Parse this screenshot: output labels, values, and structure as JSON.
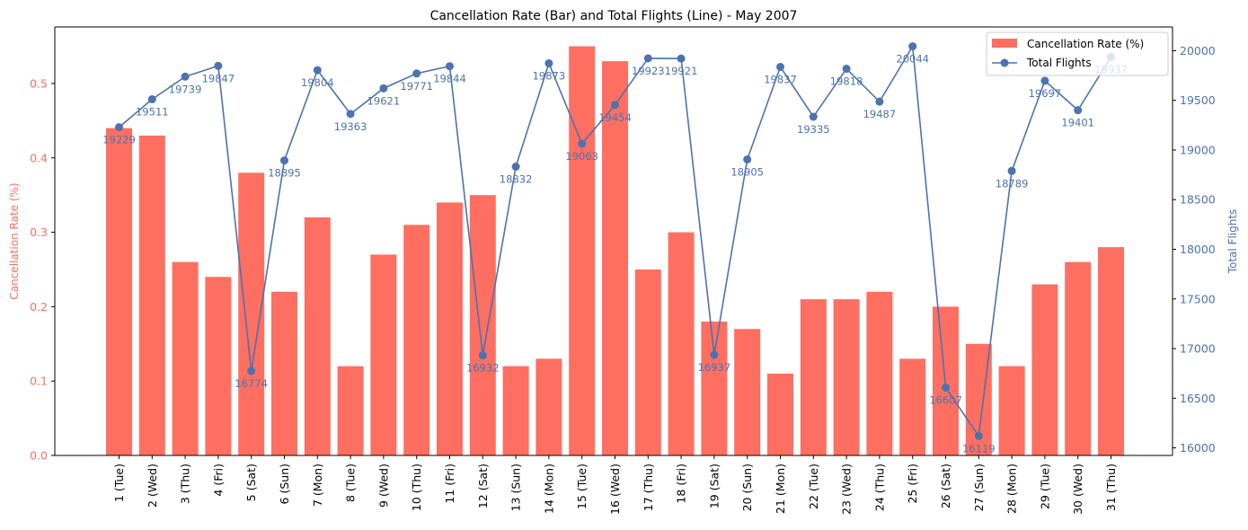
{
  "chart_data": {
    "type": "bar+line",
    "title": "Cancellation Rate (Bar) and Total Flights (Line) - May 2007",
    "categories": [
      "1 (Tue)",
      "2 (Wed)",
      "3 (Thu)",
      "4 (Fri)",
      "5 (Sat)",
      "6 (Sun)",
      "7 (Mon)",
      "8 (Tue)",
      "9 (Wed)",
      "10 (Thu)",
      "11 (Fri)",
      "12 (Sat)",
      "13 (Sun)",
      "14 (Mon)",
      "15 (Tue)",
      "16 (Wed)",
      "17 (Thu)",
      "18 (Fri)",
      "19 (Sat)",
      "20 (Sun)",
      "21 (Mon)",
      "22 (Tue)",
      "23 (Wed)",
      "24 (Thu)",
      "25 (Fri)",
      "26 (Sat)",
      "27 (Sun)",
      "28 (Mon)",
      "29 (Tue)",
      "30 (Wed)",
      "31 (Thu)"
    ],
    "bar_series": {
      "name": "Cancellation Rate (%)",
      "color": "#ff6f61",
      "values": [
        0.44,
        0.43,
        0.26,
        0.24,
        0.38,
        0.22,
        0.32,
        0.12,
        0.27,
        0.31,
        0.34,
        0.35,
        0.12,
        0.13,
        0.55,
        0.53,
        0.25,
        0.3,
        0.18,
        0.17,
        0.11,
        0.21,
        0.21,
        0.22,
        0.13,
        0.2,
        0.15,
        0.12,
        0.23,
        0.26,
        0.28
      ]
    },
    "line_series": {
      "name": "Total Flights",
      "color": "#4c72b0",
      "values": [
        19229,
        19511,
        19739,
        19847,
        16774,
        18895,
        19804,
        19363,
        19621,
        19771,
        19844,
        16932,
        18832,
        19873,
        19063,
        19454,
        19923,
        19921,
        16937,
        18905,
        19837,
        19335,
        19818,
        19487,
        20044,
        16607,
        16119,
        18789,
        19697,
        19401,
        19937
      ],
      "labels": [
        "19229",
        "19511",
        "19739",
        "19847",
        "16774",
        "18895",
        "19804",
        "19363",
        "19621",
        "19771",
        "19844",
        "16932",
        "18832",
        "19873",
        "19063",
        "19454",
        "19923",
        "19921",
        "16937",
        "18905",
        "19837",
        "19335",
        "19818",
        "19487",
        "20044",
        "16607",
        "16119",
        "18789",
        "19697",
        "19401",
        "19937"
      ]
    },
    "y_left": {
      "label": "Cancellation Rate (%)",
      "color": "#ff6f61",
      "range": [
        0,
        0.576
      ],
      "ticks": [
        0.0,
        0.1,
        0.2,
        0.3,
        0.4,
        0.5
      ],
      "tick_labels": [
        "0.0",
        "0.1",
        "0.2",
        "0.3",
        "0.4",
        "0.5"
      ]
    },
    "y_right": {
      "label": "Total Flights",
      "color": "#4c72b0",
      "range": [
        15923.75,
        20239.25
      ],
      "ticks": [
        16000,
        16500,
        17000,
        17500,
        18000,
        18500,
        19000,
        19500,
        20000
      ],
      "tick_labels": [
        "16000",
        "16500",
        "17000",
        "17500",
        "18000",
        "18500",
        "19000",
        "19500",
        "20000"
      ]
    },
    "legend": {
      "placement": "top-right",
      "entries": [
        "Cancellation Rate (%)",
        "Total Flights"
      ]
    },
    "grid": false
  }
}
